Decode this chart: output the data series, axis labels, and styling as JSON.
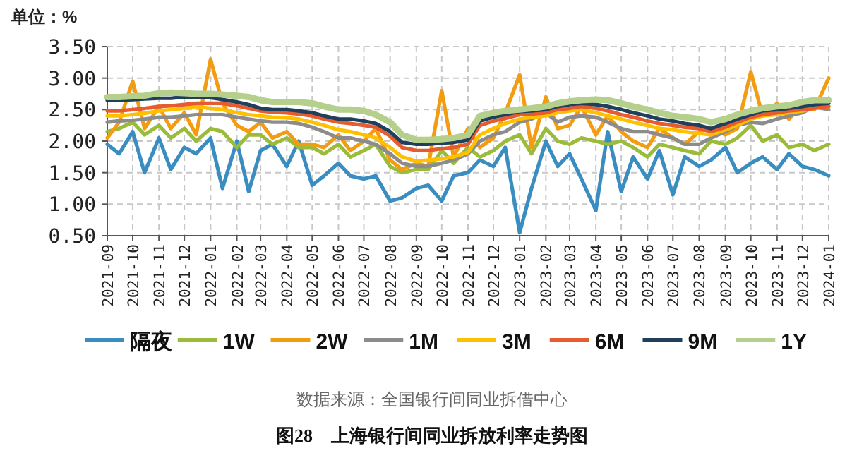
{
  "chart_data": {
    "type": "line",
    "title": "图28　上海银行间同业拆放利率走势图",
    "ylabel": "单位：%",
    "annotations": [
      "数据来源：全国银行间同业拆借中心"
    ],
    "x": [
      "2021-09-01",
      "2021-09-15",
      "2021-10-01",
      "2021-10-15",
      "2021-11-01",
      "2021-11-15",
      "2021-12-01",
      "2021-12-15",
      "2022-01-01",
      "2022-01-15",
      "2022-02-01",
      "2022-02-15",
      "2022-03-01",
      "2022-03-15",
      "2022-04-01",
      "2022-04-15",
      "2022-05-01",
      "2022-05-15",
      "2022-06-01",
      "2022-06-15",
      "2022-07-01",
      "2022-07-15",
      "2022-08-01",
      "2022-08-15",
      "2022-09-01",
      "2022-09-15",
      "2022-10-01",
      "2022-10-15",
      "2022-11-01",
      "2022-11-15",
      "2022-12-01",
      "2022-12-15",
      "2023-01-01",
      "2023-01-15",
      "2023-02-01",
      "2023-02-15",
      "2023-03-01",
      "2023-03-15",
      "2023-04-01",
      "2023-04-15",
      "2023-05-01",
      "2023-05-15",
      "2023-06-01",
      "2023-06-15",
      "2023-07-01",
      "2023-07-15",
      "2023-08-01",
      "2023-08-15",
      "2023-09-01",
      "2023-09-15",
      "2023-10-01",
      "2023-10-15",
      "2023-11-01",
      "2023-11-15",
      "2023-12-01",
      "2023-12-15",
      "2024-01-01"
    ],
    "series": [
      {
        "name": "隔夜",
        "color": "#3a8dc0",
        "values": [
          1.95,
          1.8,
          2.15,
          1.5,
          2.05,
          1.55,
          1.9,
          1.8,
          2.05,
          1.25,
          2.0,
          1.2,
          1.85,
          1.95,
          1.6,
          2.0,
          1.3,
          1.45,
          1.65,
          1.45,
          1.4,
          1.45,
          1.05,
          1.1,
          1.25,
          1.3,
          1.05,
          1.45,
          1.5,
          1.7,
          1.6,
          1.9,
          0.55,
          1.25,
          2.0,
          1.6,
          1.8,
          1.4,
          0.9,
          2.15,
          1.2,
          1.75,
          1.4,
          1.85,
          1.15,
          1.75,
          1.6,
          1.7,
          1.9,
          1.5,
          1.65,
          1.75,
          1.55,
          1.8,
          1.6,
          1.55,
          1.45
        ]
      },
      {
        "name": "1W",
        "color": "#9bbb3b",
        "values": [
          2.15,
          2.2,
          2.3,
          2.1,
          2.25,
          2.05,
          2.2,
          2.0,
          2.2,
          2.15,
          1.9,
          2.1,
          2.1,
          1.95,
          2.05,
          1.9,
          1.9,
          1.8,
          1.95,
          1.75,
          1.85,
          1.95,
          1.6,
          1.5,
          1.55,
          1.55,
          1.85,
          1.65,
          1.9,
          1.75,
          1.85,
          2.0,
          2.1,
          1.8,
          2.2,
          2.0,
          1.95,
          2.05,
          2.0,
          1.95,
          2.0,
          1.9,
          1.75,
          1.95,
          1.9,
          1.85,
          1.8,
          2.0,
          1.95,
          2.05,
          2.25,
          2.0,
          2.1,
          1.9,
          1.95,
          1.85,
          1.95
        ]
      },
      {
        "name": "2W",
        "color": "#f39c12",
        "values": [
          2.05,
          2.3,
          2.95,
          2.2,
          2.55,
          2.2,
          2.45,
          2.1,
          3.3,
          2.6,
          2.25,
          2.15,
          2.3,
          2.05,
          2.15,
          1.95,
          1.95,
          1.9,
          2.1,
          1.85,
          2.0,
          2.2,
          1.7,
          1.55,
          1.65,
          1.6,
          2.8,
          1.75,
          2.2,
          1.9,
          2.05,
          2.45,
          3.05,
          1.9,
          2.7,
          2.2,
          2.25,
          2.55,
          2.1,
          2.4,
          2.15,
          2.0,
          1.9,
          2.2,
          2.05,
          1.95,
          2.15,
          2.2,
          2.1,
          2.2,
          3.1,
          2.4,
          2.6,
          2.35,
          2.6,
          2.5,
          3.0
        ]
      },
      {
        "name": "1M",
        "color": "#8c8c8c",
        "values": [
          2.3,
          2.32,
          2.33,
          2.35,
          2.38,
          2.38,
          2.4,
          2.42,
          2.42,
          2.42,
          2.38,
          2.35,
          2.32,
          2.3,
          2.3,
          2.28,
          2.22,
          2.15,
          2.05,
          2.05,
          2.0,
          1.95,
          1.8,
          1.65,
          1.6,
          1.6,
          1.65,
          1.7,
          1.8,
          2.0,
          2.1,
          2.15,
          2.3,
          2.35,
          2.45,
          2.3,
          2.38,
          2.4,
          2.38,
          2.3,
          2.2,
          2.15,
          2.15,
          2.1,
          2.05,
          1.95,
          1.95,
          2.05,
          2.15,
          2.25,
          2.3,
          2.28,
          2.35,
          2.4,
          2.45,
          2.55,
          2.5
        ]
      },
      {
        "name": "3M",
        "color": "#ffc000",
        "values": [
          2.4,
          2.4,
          2.42,
          2.44,
          2.48,
          2.5,
          2.52,
          2.55,
          2.52,
          2.5,
          2.45,
          2.42,
          2.4,
          2.38,
          2.37,
          2.35,
          2.3,
          2.25,
          2.18,
          2.15,
          2.1,
          2.05,
          1.9,
          1.75,
          1.68,
          1.7,
          1.72,
          1.75,
          1.82,
          2.1,
          2.2,
          2.28,
          2.35,
          2.38,
          2.4,
          2.45,
          2.48,
          2.5,
          2.45,
          2.4,
          2.35,
          2.3,
          2.25,
          2.2,
          2.18,
          2.15,
          2.12,
          2.1,
          2.18,
          2.25,
          2.35,
          2.4,
          2.42,
          2.45,
          2.48,
          2.52,
          2.55
        ]
      },
      {
        "name": "6M",
        "color": "#e65c2e",
        "values": [
          2.48,
          2.48,
          2.5,
          2.52,
          2.55,
          2.56,
          2.58,
          2.6,
          2.6,
          2.6,
          2.56,
          2.52,
          2.48,
          2.46,
          2.45,
          2.43,
          2.4,
          2.35,
          2.3,
          2.28,
          2.25,
          2.22,
          2.08,
          1.9,
          1.85,
          1.85,
          1.88,
          1.9,
          1.95,
          2.25,
          2.32,
          2.36,
          2.42,
          2.43,
          2.45,
          2.5,
          2.52,
          2.55,
          2.52,
          2.48,
          2.42,
          2.38,
          2.32,
          2.28,
          2.25,
          2.22,
          2.2,
          2.15,
          2.22,
          2.3,
          2.38,
          2.42,
          2.45,
          2.48,
          2.5,
          2.52,
          2.55
        ]
      },
      {
        "name": "9M",
        "color": "#1f3f5b",
        "values": [
          2.65,
          2.65,
          2.66,
          2.67,
          2.68,
          2.68,
          2.7,
          2.7,
          2.69,
          2.66,
          2.62,
          2.58,
          2.52,
          2.5,
          2.5,
          2.48,
          2.45,
          2.4,
          2.35,
          2.35,
          2.32,
          2.28,
          2.15,
          1.98,
          1.95,
          1.95,
          1.97,
          1.98,
          2.02,
          2.32,
          2.38,
          2.42,
          2.47,
          2.48,
          2.5,
          2.55,
          2.58,
          2.6,
          2.58,
          2.55,
          2.5,
          2.45,
          2.4,
          2.35,
          2.32,
          2.28,
          2.25,
          2.2,
          2.28,
          2.35,
          2.42,
          2.48,
          2.5,
          2.52,
          2.55,
          2.58,
          2.6
        ]
      },
      {
        "name": "1Y",
        "color": "#b5cf8c",
        "values": [
          2.7,
          2.7,
          2.71,
          2.72,
          2.76,
          2.77,
          2.76,
          2.75,
          2.75,
          2.74,
          2.72,
          2.7,
          2.65,
          2.62,
          2.62,
          2.62,
          2.6,
          2.55,
          2.5,
          2.5,
          2.48,
          2.42,
          2.3,
          2.1,
          2.02,
          2.02,
          2.03,
          2.05,
          2.1,
          2.4,
          2.45,
          2.48,
          2.5,
          2.52,
          2.55,
          2.6,
          2.63,
          2.65,
          2.66,
          2.65,
          2.6,
          2.55,
          2.5,
          2.45,
          2.4,
          2.38,
          2.35,
          2.3,
          2.35,
          2.42,
          2.48,
          2.52,
          2.55,
          2.57,
          2.62,
          2.65,
          2.65
        ]
      }
    ],
    "xlim": [
      "2021-09",
      "2024-01"
    ],
    "xticks": [
      "2021-09",
      "2021-10",
      "2021-11",
      "2021-12",
      "2022-01",
      "2022-02",
      "2022-03",
      "2022-04",
      "2022-05",
      "2022-06",
      "2022-07",
      "2022-08",
      "2022-09",
      "2022-10",
      "2022-11",
      "2022-12",
      "2023-01",
      "2023-02",
      "2023-03",
      "2023-04",
      "2023-05",
      "2023-06",
      "2023-07",
      "2023-08",
      "2023-09",
      "2023-10",
      "2023-11",
      "2023-12",
      "2024-01"
    ],
    "ylim": [
      0.5,
      3.5
    ],
    "yticks": [
      {
        "value": 0.5,
        "label": "0.50"
      },
      {
        "value": 1,
        "label": "1.00"
      },
      {
        "value": 1.5,
        "label": "1.50"
      },
      {
        "value": 2,
        "label": "2.00"
      },
      {
        "value": 2.5,
        "label": "2.50"
      },
      {
        "value": 3,
        "label": "3.00"
      },
      {
        "value": 3.5,
        "label": "3.50"
      }
    ],
    "grid": true,
    "legend": "bottom",
    "marker": "none",
    "line_style": "solid"
  }
}
